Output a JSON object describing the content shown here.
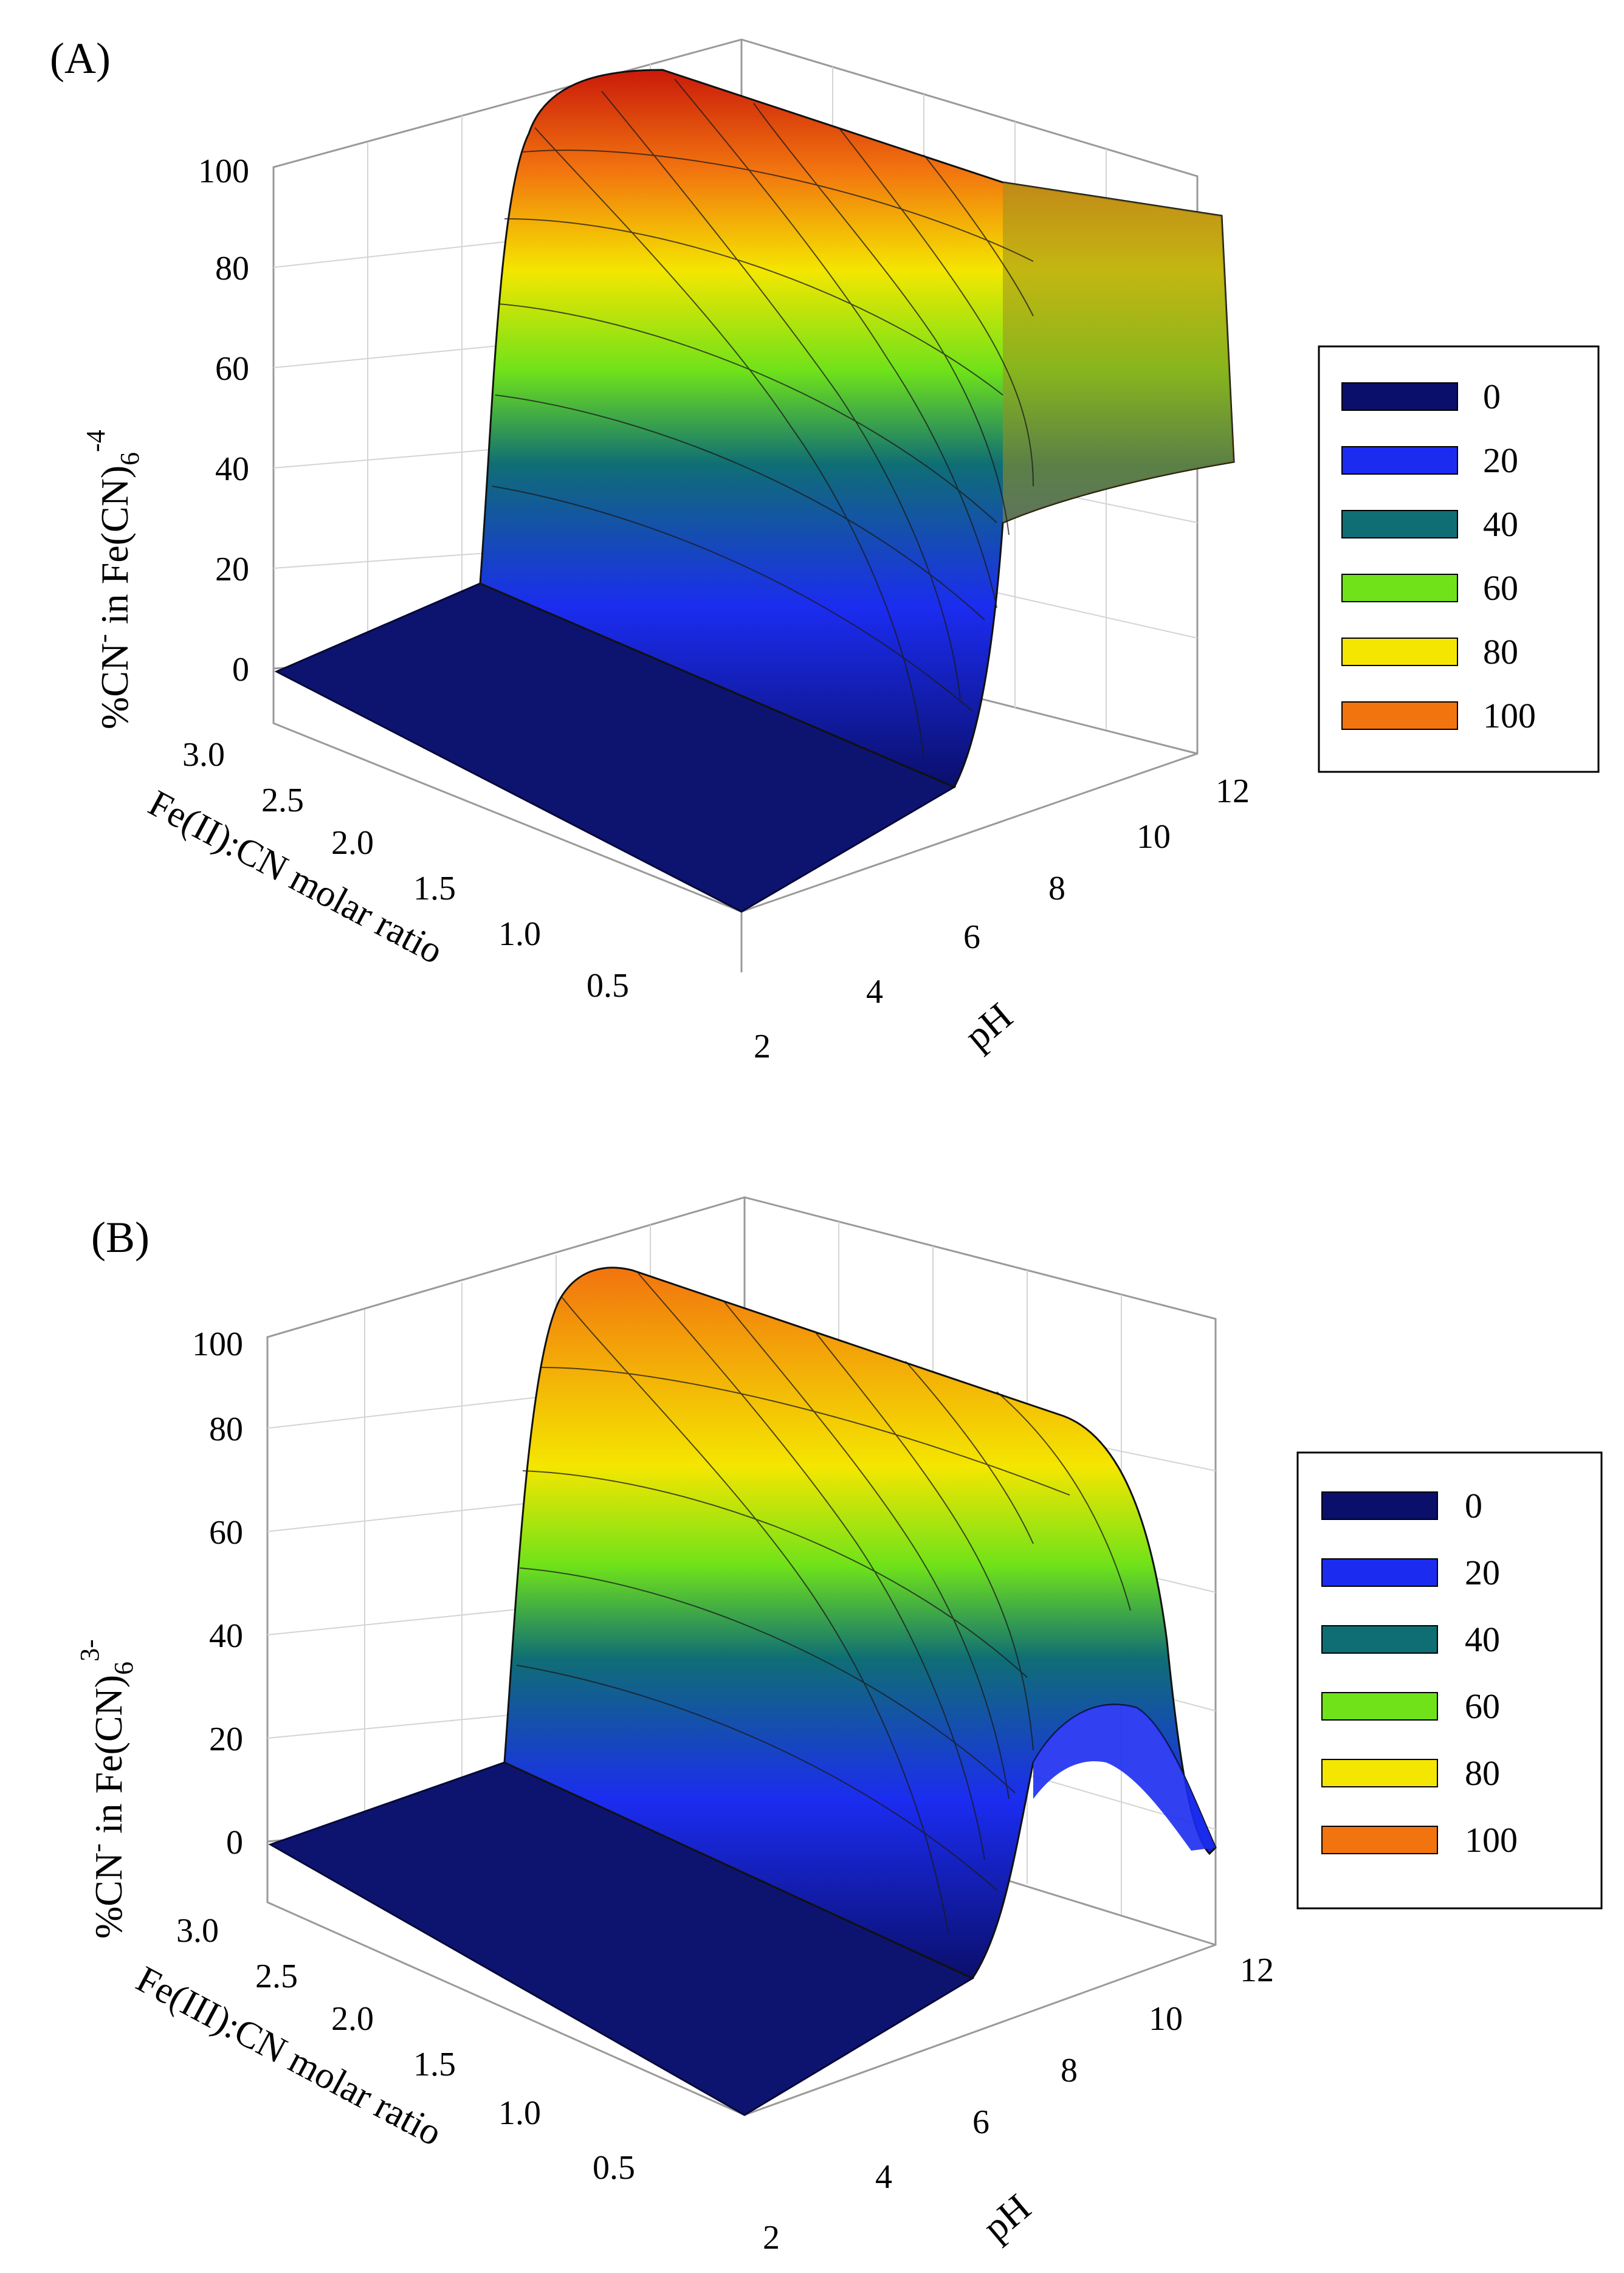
{
  "chart_data": [
    {
      "type": "surface3d",
      "panel_label": "(A)",
      "title": "",
      "zlabel_main": "%CN",
      "zlabel_sup1": "-",
      "zlabel_mid": " in Fe(CN)",
      "zlabel_sub": "6",
      "zlabel_sup2": "-4",
      "xlabel": "Fe(II):CN molar ratio",
      "ylabel": "pH",
      "x_range": [
        0,
        3
      ],
      "y_range": [
        2,
        12
      ],
      "z_range": [
        0,
        100
      ],
      "x_ticks": [
        "3.0",
        "2.5",
        "2.0",
        "1.5",
        "1.0",
        "0.5"
      ],
      "y_ticks": [
        "2",
        "4",
        "6",
        "8",
        "10",
        "12"
      ],
      "z_ticks": [
        "0",
        "20",
        "40",
        "60",
        "80",
        "100"
      ],
      "surface_description_points": [
        {
          "ph": 2,
          "ratio_any": 0,
          "value": 0
        },
        {
          "ph": 6,
          "ratio_0.5": 0,
          "ratio_3.0": 0
        },
        {
          "ph": 7,
          "ratio_0.5": 5,
          "ratio_3.0": 100
        },
        {
          "ph": 8,
          "ratio_0.5": 35,
          "ratio_3.0": 100
        },
        {
          "ph": 10,
          "ratio_0.5": 55,
          "ratio_3.0": 100
        },
        {
          "ph": 12,
          "ratio_0.5": 60,
          "ratio_3.0": 95
        }
      ],
      "legend": [
        {
          "label": "0",
          "color": "#0a0f6b"
        },
        {
          "label": "20",
          "color": "#1b2cf0"
        },
        {
          "label": "40",
          "color": "#0f6e74"
        },
        {
          "label": "60",
          "color": "#6fe21a"
        },
        {
          "label": "80",
          "color": "#f4e600"
        },
        {
          "label": "100",
          "color": "#f2740f"
        }
      ]
    },
    {
      "type": "surface3d",
      "panel_label": "(B)",
      "title": "",
      "zlabel_main": "%CN",
      "zlabel_sup1": "-",
      "zlabel_mid": " in Fe(CN)",
      "zlabel_sub": "6",
      "zlabel_sup2": "3-",
      "xlabel": "Fe(III):CN molar ratio",
      "ylabel": "pH",
      "x_range": [
        0,
        3
      ],
      "y_range": [
        2,
        12
      ],
      "z_range": [
        0,
        100
      ],
      "x_ticks": [
        "3.0",
        "2.5",
        "2.0",
        "1.5",
        "1.0",
        "0.5"
      ],
      "y_ticks": [
        "2",
        "4",
        "6",
        "8",
        "10",
        "12"
      ],
      "z_ticks": [
        "0",
        "20",
        "40",
        "60",
        "80",
        "100"
      ],
      "surface_description_points": [
        {
          "ph": 2,
          "ratio_any": 0,
          "value": 0
        },
        {
          "ph": 6,
          "ratio_0.5": 0,
          "ratio_3.0": 0
        },
        {
          "ph": 7,
          "ratio_0.5": 5,
          "ratio_3.0": 100
        },
        {
          "ph": 8,
          "ratio_0.5": 30,
          "ratio_3.0": 98
        },
        {
          "ph": 10,
          "ratio_0.5": 25,
          "ratio_3.0": 90
        },
        {
          "ph": 12,
          "ratio_0.5": 0,
          "ratio_3.0": 60
        }
      ],
      "legend": [
        {
          "label": "0",
          "color": "#0a0f6b"
        },
        {
          "label": "20",
          "color": "#1b2cf0"
        },
        {
          "label": "40",
          "color": "#0f6e74"
        },
        {
          "label": "60",
          "color": "#6fe21a"
        },
        {
          "label": "80",
          "color": "#f4e600"
        },
        {
          "label": "100",
          "color": "#f2740f"
        }
      ]
    }
  ]
}
